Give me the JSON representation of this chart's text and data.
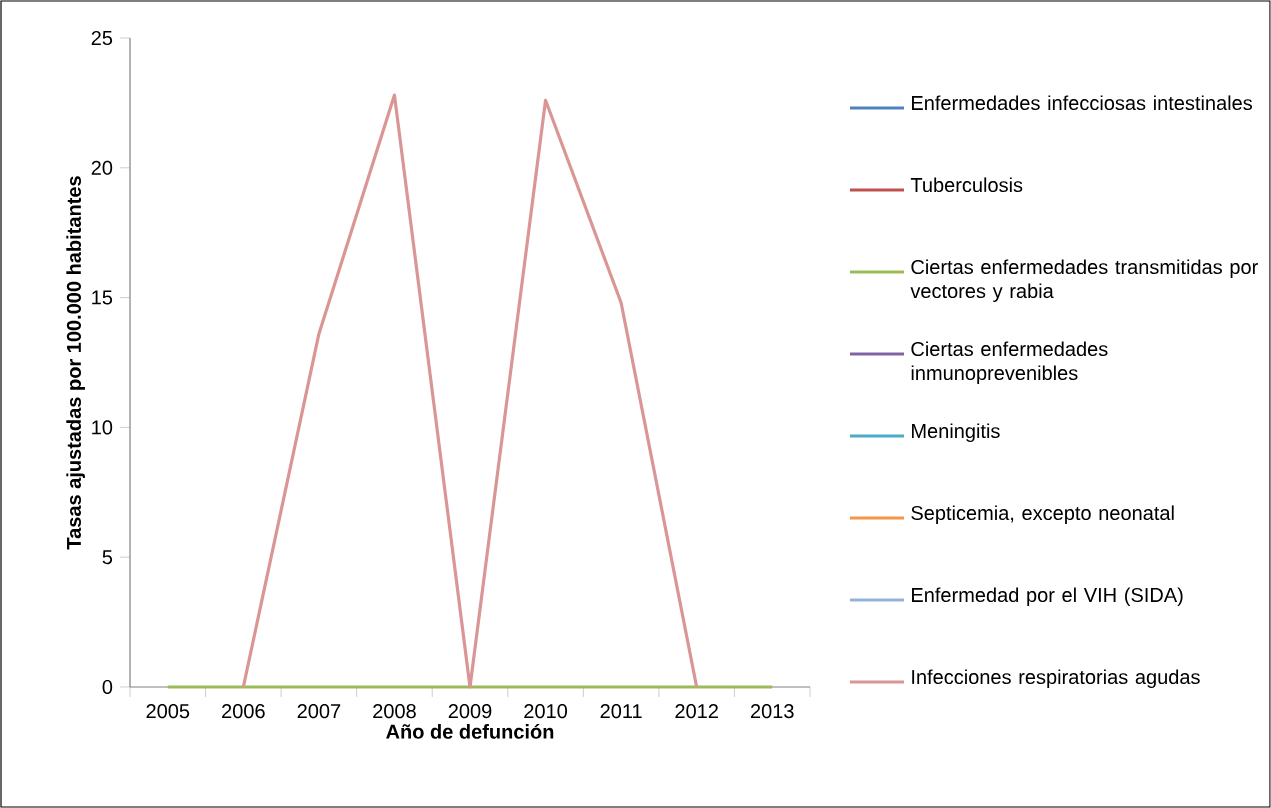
{
  "chart_data": {
    "type": "line",
    "xlabel": "Año de defunción",
    "ylabel": "Tasas ajustadas por 100.000 habitantes",
    "categories": [
      "2005",
      "2006",
      "2007",
      "2008",
      "2009",
      "2010",
      "2011",
      "2012",
      "2013"
    ],
    "ylim": [
      0,
      25
    ],
    "yticks": [
      0,
      5,
      10,
      15,
      20,
      25
    ],
    "grid": false,
    "legend": "right",
    "marker": "none",
    "line_style": "solid",
    "series": [
      {
        "name": "Enfermedades infecciosas intestinales",
        "color": "#4f81bd",
        "values": [
          null,
          null,
          null,
          null,
          null,
          null,
          null,
          null,
          null
        ]
      },
      {
        "name": "Tuberculosis",
        "color": "#c0504d",
        "values": [
          null,
          null,
          null,
          null,
          null,
          null,
          null,
          null,
          null
        ]
      },
      {
        "name": "Ciertas enfermedades transmitidas por vectores y rabia",
        "color": "#9bbb59",
        "values": [
          0,
          0,
          0,
          0,
          0,
          0,
          0,
          0,
          0
        ]
      },
      {
        "name": "Ciertas enfermedades inmunoprevenibles",
        "color": "#8064a2",
        "values": [
          null,
          null,
          null,
          null,
          null,
          null,
          null,
          null,
          null
        ]
      },
      {
        "name": "Meningitis",
        "color": "#4bacc6",
        "values": [
          null,
          null,
          null,
          null,
          null,
          null,
          null,
          null,
          null
        ]
      },
      {
        "name": "Septicemia, excepto neonatal",
        "color": "#f79646",
        "values": [
          null,
          null,
          null,
          null,
          null,
          null,
          null,
          null,
          null
        ]
      },
      {
        "name": "Enfermedad por el VIH (SIDA)",
        "color": "#95b3d7",
        "values": [
          null,
          null,
          null,
          null,
          null,
          null,
          null,
          null,
          null
        ]
      },
      {
        "name": "Infecciones respiratorias agudas",
        "color": "#d99694",
        "values": [
          null,
          0,
          13.6,
          22.8,
          0,
          22.6,
          14.8,
          0,
          null
        ]
      }
    ]
  }
}
